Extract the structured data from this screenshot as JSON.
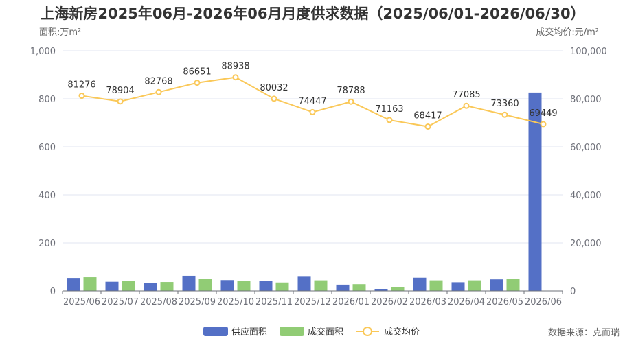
{
  "chart_data": {
    "type": "bar",
    "title": "上海新房2025年06月-2026年06月月度供求数据（2025/06/01-2026/06/30）",
    "categories": [
      "2025/06",
      "2025/07",
      "2025/08",
      "2025/09",
      "2025/10",
      "2025/11",
      "2025/12",
      "2026/01",
      "2026/02",
      "2026/03",
      "2026/04",
      "2026/05",
      "2026/06"
    ],
    "y_left": {
      "unit_label": "面积:万m²",
      "range": [
        0,
        1000
      ],
      "ticks": [
        "0",
        "200",
        "400",
        "600",
        "800",
        "1,000"
      ]
    },
    "y_right": {
      "unit_label": "成交均价:元/m²",
      "range": [
        0,
        100000
      ],
      "ticks": [
        "0",
        "20,000",
        "40,000",
        "60,000",
        "80,000",
        "100,000"
      ]
    },
    "grid": true,
    "legend_position": "bottom-center",
    "series": [
      {
        "name": "供应面积",
        "type": "bar",
        "axis": "left",
        "color": "#5470c6",
        "values": [
          54,
          38,
          34,
          63,
          45,
          40,
          59,
          26,
          7,
          55,
          36,
          48,
          826
        ]
      },
      {
        "name": "成交面积",
        "type": "bar",
        "axis": "left",
        "color": "#91cc75",
        "values": [
          57,
          41,
          37,
          50,
          40,
          35,
          44,
          28,
          15,
          44,
          44,
          50,
          0
        ]
      },
      {
        "name": "成交均价",
        "type": "line",
        "axis": "right",
        "color": "#fac858",
        "values": [
          81276,
          78904,
          82768,
          86651,
          88938,
          80032,
          74447,
          78788,
          71163,
          68417,
          77085,
          73360,
          69449
        ],
        "labels": [
          "81276",
          "78904",
          "82768",
          "86651",
          "88938",
          "80032",
          "74447",
          "78788",
          "71163",
          "68417",
          "77085",
          "73360",
          "69449"
        ]
      }
    ],
    "source": "数据来源：克而瑞"
  }
}
